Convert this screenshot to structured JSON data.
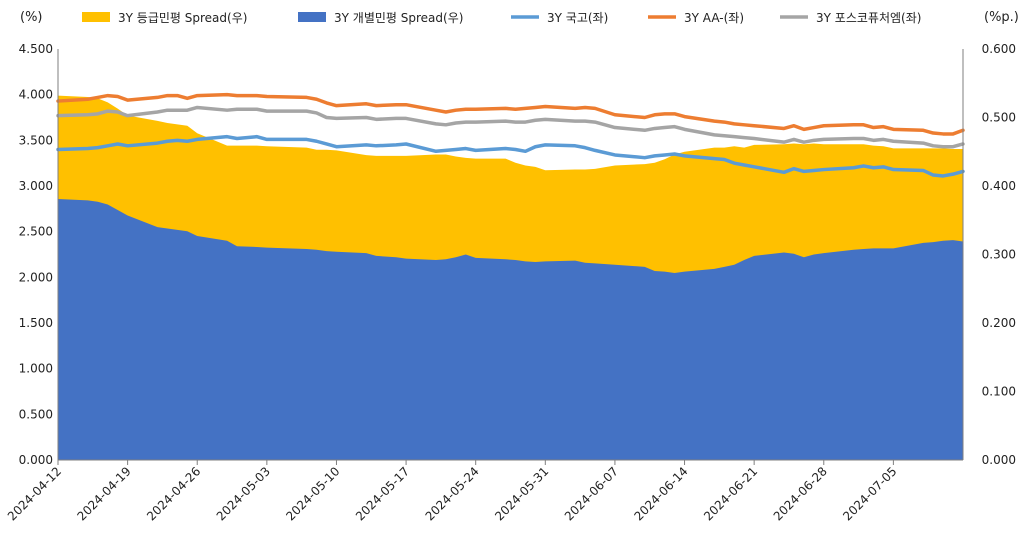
{
  "chart_data": {
    "type": "area",
    "left_axis_unit": "(%)",
    "right_axis_unit": "(%p.)",
    "left_ylim": [
      0,
      4.5
    ],
    "right_ylim": [
      0,
      0.6
    ],
    "left_ticks": [
      "0.000",
      "0.500",
      "1.000",
      "1.500",
      "2.000",
      "2.500",
      "3.000",
      "3.500",
      "4.000",
      "4.500"
    ],
    "right_ticks": [
      "0.000",
      "0.100",
      "0.200",
      "0.300",
      "0.400",
      "0.500",
      "0.600"
    ],
    "x_tick_labels": [
      "2024-04-12",
      "2024-04-19",
      "2024-04-26",
      "2024-05-03",
      "2024-05-10",
      "2024-05-17",
      "2024-05-24",
      "2024-05-31",
      "2024-06-07",
      "2024-06-14",
      "2024-06-21",
      "2024-06-28",
      "2024-07-05"
    ],
    "grid": "none",
    "legend_position": "top",
    "x": [
      "2024-04-12",
      "2024-04-15",
      "2024-04-16",
      "2024-04-17",
      "2024-04-18",
      "2024-04-19",
      "2024-04-22",
      "2024-04-23",
      "2024-04-24",
      "2024-04-25",
      "2024-04-26",
      "2024-04-29",
      "2024-04-30",
      "2024-05-02",
      "2024-05-03",
      "2024-05-07",
      "2024-05-08",
      "2024-05-09",
      "2024-05-10",
      "2024-05-13",
      "2024-05-14",
      "2024-05-16",
      "2024-05-17",
      "2024-05-20",
      "2024-05-21",
      "2024-05-22",
      "2024-05-23",
      "2024-05-24",
      "2024-05-27",
      "2024-05-28",
      "2024-05-29",
      "2024-05-30",
      "2024-05-31",
      "2024-06-03",
      "2024-06-04",
      "2024-06-05",
      "2024-06-07",
      "2024-06-10",
      "2024-06-11",
      "2024-06-12",
      "2024-06-13",
      "2024-06-14",
      "2024-06-17",
      "2024-06-18",
      "2024-06-19",
      "2024-06-20",
      "2024-06-21",
      "2024-06-24",
      "2024-06-25",
      "2024-06-26",
      "2024-06-27",
      "2024-06-28",
      "2024-07-01",
      "2024-07-02",
      "2024-07-03",
      "2024-07-04",
      "2024-07-05",
      "2024-07-08",
      "2024-07-09",
      "2024-07-10",
      "2024-07-11",
      "2024-07-12"
    ],
    "series": [
      {
        "name": "3Y 등급민평 Spread(우)",
        "axis": "right",
        "kind": "area",
        "color": "#FFC000",
        "values": [
          0.532,
          0.53,
          0.528,
          0.522,
          0.513,
          0.503,
          0.495,
          0.492,
          0.49,
          0.488,
          0.477,
          0.459,
          0.459,
          0.459,
          0.458,
          0.456,
          0.453,
          0.453,
          0.452,
          0.445,
          0.444,
          0.444,
          0.444,
          0.446,
          0.446,
          0.443,
          0.441,
          0.44,
          0.44,
          0.434,
          0.43,
          0.428,
          0.423,
          0.424,
          0.424,
          0.425,
          0.43,
          0.432,
          0.434,
          0.439,
          0.446,
          0.45,
          0.456,
          0.456,
          0.458,
          0.456,
          0.46,
          0.461,
          0.462,
          0.461,
          0.462,
          0.461,
          0.461,
          0.461,
          0.459,
          0.458,
          0.455,
          0.455,
          0.455,
          0.455,
          0.454,
          0.454
        ]
      },
      {
        "name": "3Y 개별민평 Spread(우)",
        "axis": "right",
        "kind": "area",
        "color": "#4472C4",
        "values": [
          0.381,
          0.379,
          0.377,
          0.373,
          0.365,
          0.357,
          0.34,
          0.338,
          0.336,
          0.334,
          0.327,
          0.32,
          0.312,
          0.311,
          0.31,
          0.308,
          0.307,
          0.305,
          0.304,
          0.302,
          0.298,
          0.296,
          0.294,
          0.292,
          0.293,
          0.296,
          0.3,
          0.295,
          0.293,
          0.292,
          0.29,
          0.289,
          0.29,
          0.291,
          0.288,
          0.287,
          0.285,
          0.282,
          0.276,
          0.275,
          0.273,
          0.275,
          0.279,
          0.282,
          0.285,
          0.292,
          0.298,
          0.303,
          0.301,
          0.296,
          0.3,
          0.302,
          0.307,
          0.308,
          0.309,
          0.309,
          0.309,
          0.317,
          0.318,
          0.32,
          0.321,
          0.319
        ]
      },
      {
        "name": "3Y 국고(좌)",
        "axis": "left",
        "kind": "line",
        "color": "#5B9BD5",
        "values": [
          3.4,
          3.41,
          3.42,
          3.44,
          3.46,
          3.44,
          3.47,
          3.49,
          3.5,
          3.49,
          3.51,
          3.54,
          3.52,
          3.54,
          3.51,
          3.51,
          3.49,
          3.46,
          3.43,
          3.45,
          3.44,
          3.45,
          3.46,
          3.38,
          3.39,
          3.4,
          3.41,
          3.39,
          3.41,
          3.4,
          3.38,
          3.43,
          3.45,
          3.44,
          3.42,
          3.39,
          3.34,
          3.31,
          3.33,
          3.34,
          3.35,
          3.33,
          3.3,
          3.29,
          3.25,
          3.23,
          3.21,
          3.15,
          3.19,
          3.16,
          3.17,
          3.18,
          3.2,
          3.22,
          3.2,
          3.21,
          3.18,
          3.17,
          3.12,
          3.11,
          3.13,
          3.16
        ]
      },
      {
        "name": "3Y AA-(좌)",
        "axis": "left",
        "kind": "line",
        "color": "#ED7D31",
        "values": [
          3.93,
          3.95,
          3.97,
          3.99,
          3.98,
          3.94,
          3.97,
          3.99,
          3.99,
          3.96,
          3.99,
          4.0,
          3.99,
          3.99,
          3.98,
          3.97,
          3.95,
          3.91,
          3.88,
          3.9,
          3.88,
          3.89,
          3.89,
          3.83,
          3.81,
          3.83,
          3.84,
          3.84,
          3.85,
          3.84,
          3.85,
          3.86,
          3.87,
          3.85,
          3.86,
          3.85,
          3.78,
          3.75,
          3.78,
          3.79,
          3.79,
          3.76,
          3.71,
          3.7,
          3.68,
          3.67,
          3.66,
          3.63,
          3.66,
          3.62,
          3.64,
          3.66,
          3.67,
          3.67,
          3.64,
          3.65,
          3.62,
          3.61,
          3.58,
          3.57,
          3.57,
          3.61
        ]
      },
      {
        "name": "3Y 포스코퓨처엠(좌)",
        "axis": "left",
        "kind": "line",
        "color": "#A5A5A5",
        "values": [
          3.77,
          3.78,
          3.79,
          3.82,
          3.81,
          3.77,
          3.81,
          3.83,
          3.83,
          3.83,
          3.86,
          3.83,
          3.84,
          3.84,
          3.82,
          3.82,
          3.8,
          3.75,
          3.74,
          3.75,
          3.73,
          3.74,
          3.74,
          3.68,
          3.67,
          3.69,
          3.7,
          3.7,
          3.71,
          3.7,
          3.7,
          3.72,
          3.73,
          3.71,
          3.71,
          3.7,
          3.64,
          3.61,
          3.63,
          3.64,
          3.65,
          3.62,
          3.56,
          3.55,
          3.54,
          3.53,
          3.52,
          3.48,
          3.51,
          3.48,
          3.5,
          3.51,
          3.52,
          3.52,
          3.5,
          3.51,
          3.49,
          3.47,
          3.44,
          3.43,
          3.43,
          3.46
        ]
      }
    ]
  }
}
